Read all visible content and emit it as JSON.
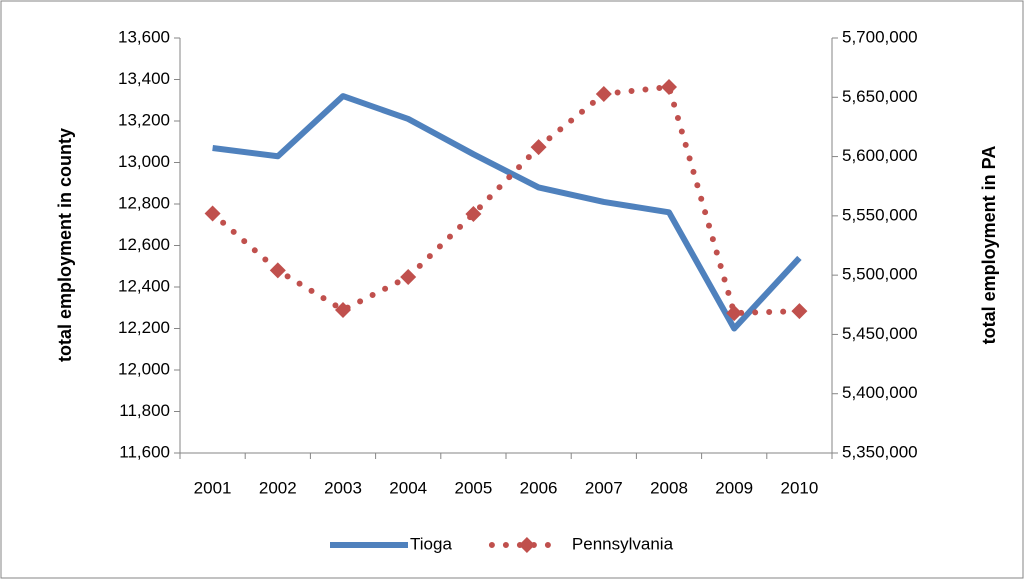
{
  "chart_data": {
    "type": "line",
    "categories": [
      "2001",
      "2002",
      "2003",
      "2004",
      "2005",
      "2006",
      "2007",
      "2008",
      "2009",
      "2010"
    ],
    "y_label": "total employment in county",
    "y2_label": "total employment in PA",
    "ylim": [
      11600,
      13600
    ],
    "yticks": [
      {
        "value": 11600,
        "label": "11,600"
      },
      {
        "value": 11800,
        "label": "11,800"
      },
      {
        "value": 12000,
        "label": "12,000"
      },
      {
        "value": 12200,
        "label": "12,200"
      },
      {
        "value": 12400,
        "label": "12,400"
      },
      {
        "value": 12600,
        "label": "12,600"
      },
      {
        "value": 12800,
        "label": "12,800"
      },
      {
        "value": 13000,
        "label": "13,000"
      },
      {
        "value": 13200,
        "label": "13,200"
      },
      {
        "value": 13400,
        "label": "13,400"
      },
      {
        "value": 13600,
        "label": "13,600"
      }
    ],
    "y2lim": [
      5350000,
      5700000
    ],
    "y2ticks": [
      {
        "value": 5350000,
        "label": "5,350,000"
      },
      {
        "value": 5400000,
        "label": "5,400,000"
      },
      {
        "value": 5450000,
        "label": "5,450,000"
      },
      {
        "value": 5500000,
        "label": "5,500,000"
      },
      {
        "value": 5550000,
        "label": "5,550,000"
      },
      {
        "value": 5600000,
        "label": "5,600,000"
      },
      {
        "value": 5650000,
        "label": "5,650,000"
      },
      {
        "value": 5700000,
        "label": "5,700,000"
      }
    ],
    "grid": false,
    "legend": "bottom",
    "series": [
      {
        "name": "Tioga",
        "color": "#4f81bd",
        "values": [
          13070,
          13030,
          13320,
          13210,
          13040,
          12880,
          12810,
          12760,
          12200,
          12540
        ]
      },
      {
        "name": "Pennsylvania",
        "color": "#c0504d",
        "axis": "y2",
        "values": [
          5552000,
          5504000,
          5470600,
          5498400,
          5551600,
          5608000,
          5652800,
          5658700,
          5468000,
          5469700
        ]
      }
    ]
  }
}
